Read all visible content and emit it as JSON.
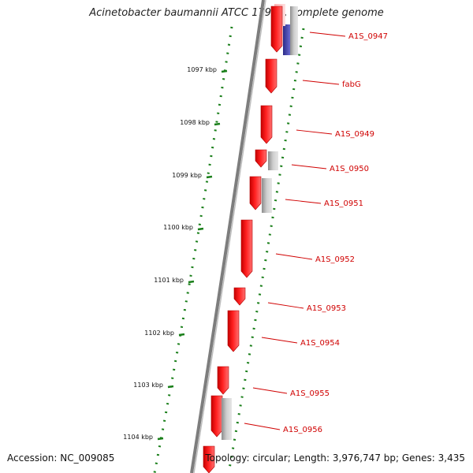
{
  "header": {
    "title": "Acinetobacter baumannii ATCC 17978, complete genome"
  },
  "footer": {
    "accession": "Accession: NC_009085",
    "topology": "Topology: circular; Length: 3,976,747 bp; Genes: 3,435"
  },
  "colors": {
    "gene": "#e81010",
    "gene_light": "#ff8a8a",
    "grey_feature": "#b9b9b9",
    "blue_feature": "#4b4bb0",
    "ruler": "#1a7f1a",
    "label": "#d00000",
    "backbone": "#8a8a8a"
  },
  "ruler": {
    "tick_labels": [
      "1097 kbp",
      "1098 kbp",
      "1099 kbp",
      "1100 kbp",
      "1101 kbp",
      "1102 kbp",
      "1103 kbp",
      "1104 kbp"
    ]
  },
  "genes": [
    {
      "label": "A1S_0947",
      "strand": "minus"
    },
    {
      "label": "fabG",
      "strand": "minus"
    },
    {
      "label": "A1S_0949",
      "strand": "minus"
    },
    {
      "label": "A1S_0950",
      "strand": "minus"
    },
    {
      "label": "A1S_0951",
      "strand": "minus"
    },
    {
      "label": "A1S_0952",
      "strand": "minus"
    },
    {
      "label": "A1S_0953",
      "strand": "minus"
    },
    {
      "label": "A1S_0954",
      "strand": "minus"
    },
    {
      "label": "A1S_0955",
      "strand": "minus"
    },
    {
      "label": "A1S_0956",
      "strand": "minus"
    }
  ]
}
